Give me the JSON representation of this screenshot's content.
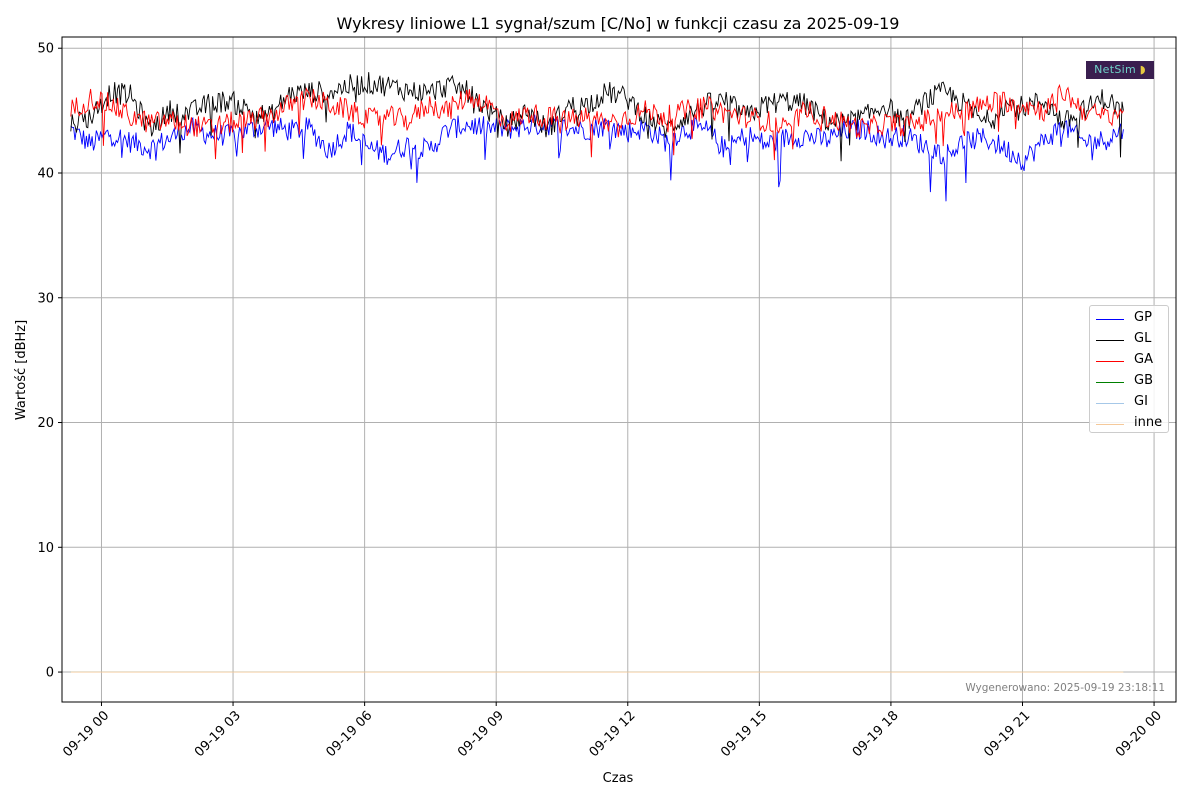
{
  "chart_data": {
    "type": "line",
    "title": "Wykresy liniowe L1 sygnał/szum [C/No] w funkcji czasu za 2025-09-19",
    "xlabel": "Czas",
    "ylabel": "Wartość [dBHz]",
    "x_ticks": [
      "09-19 00",
      "09-19 03",
      "09-19 06",
      "09-19 09",
      "09-19 12",
      "09-19 15",
      "09-19 18",
      "09-19 21",
      "09-20 00"
    ],
    "y_ticks": [
      "0",
      "10",
      "20",
      "30",
      "40",
      "50"
    ],
    "xlim": [
      "2025-09-18 23:06",
      "2025-09-20 00:30"
    ],
    "ylim": [
      -2.4,
      50.9
    ],
    "grid": true,
    "legend_position": "center-right",
    "x_start": "2025-09-18 23:18",
    "x_end": "2025-09-19 23:18",
    "series": [
      {
        "name": "GP",
        "color": "#0000ff",
        "y": [
          43.5,
          42.3,
          43.2,
          42.5,
          42.0,
          42.8,
          43.6,
          43.1,
          43.0,
          43.5,
          43.8,
          43.4,
          43.6,
          41.8,
          43.5,
          42.0,
          41.5,
          42.3,
          41.8,
          43.5,
          43.9,
          43.6,
          43.5,
          43.8,
          43.9,
          43.6,
          43.5,
          43.8,
          43.3,
          43.6,
          42.5,
          43.6,
          43.4,
          41.8,
          43.1,
          42.3,
          42.8,
          43.0,
          42.6,
          43.4,
          43.5,
          42.8,
          43.0,
          42.2,
          41.5,
          42.5,
          42.8,
          42.0,
          41.0,
          42.6,
          43.8,
          42.5,
          42.6,
          43.5
        ]
      },
      {
        "name": "GL",
        "color": "#000000",
        "y": [
          44.0,
          44.5,
          46.5,
          46.2,
          43.5,
          45.0,
          44.8,
          45.6,
          45.8,
          45.0,
          44.5,
          46.3,
          46.5,
          46.5,
          47.0,
          47.2,
          47.0,
          46.6,
          46.4,
          47.0,
          46.5,
          45.0,
          43.8,
          45.0,
          43.5,
          45.3,
          45.5,
          46.5,
          46.0,
          44.5,
          43.5,
          44.6,
          45.5,
          45.8,
          44.5,
          45.5,
          45.8,
          45.5,
          44.2,
          44.0,
          44.5,
          45.5,
          44.0,
          45.8,
          46.5,
          45.5,
          44.0,
          45.5,
          45.3,
          45.8,
          44.0,
          45.0,
          46.0,
          45.0
        ]
      },
      {
        "name": "GA",
        "color": "#ff0000",
        "y": [
          45.0,
          46.0,
          45.5,
          44.5,
          44.0,
          44.2,
          43.8,
          43.6,
          44.0,
          44.2,
          44.5,
          45.5,
          46.0,
          45.5,
          45.0,
          44.3,
          44.5,
          44.2,
          45.5,
          45.0,
          46.2,
          45.5,
          44.0,
          44.8,
          44.5,
          44.2,
          44.5,
          44.0,
          44.5,
          45.0,
          44.5,
          45.0,
          45.3,
          44.8,
          44.5,
          44.2,
          43.5,
          45.0,
          44.5,
          44.0,
          43.5,
          44.0,
          43.8,
          44.2,
          44.8,
          45.0,
          45.5,
          45.8,
          45.5,
          45.0,
          46.5,
          45.0,
          44.5,
          45.0
        ]
      },
      {
        "name": "GB",
        "color": "#008000",
        "y": [
          0,
          0
        ]
      },
      {
        "name": "GI",
        "color": "#a6c8e8",
        "y": [
          0,
          0
        ]
      },
      {
        "name": "inne",
        "color": "#f5c99a",
        "y": [
          0,
          0
        ]
      }
    ]
  },
  "footnote": "Wygenerowano: 2025-09-19 23:18:11",
  "logo_text": "NetSim"
}
